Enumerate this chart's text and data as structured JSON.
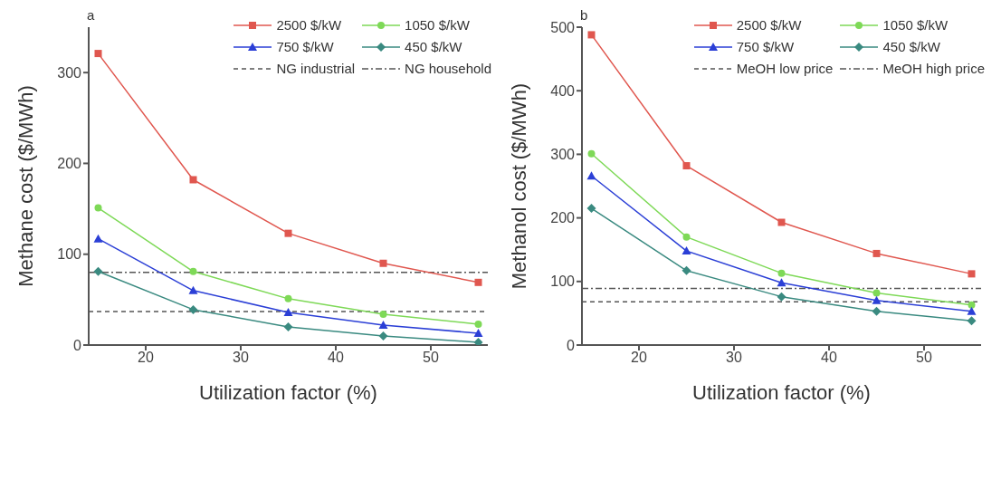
{
  "chart_data": [
    {
      "type": "line",
      "title": "a",
      "xlabel": "Utilization factor (%)",
      "ylabel": "Methane cost ($/MWh)",
      "x": [
        15,
        25,
        35,
        45,
        55
      ],
      "series": [
        {
          "name": "2500 $/kW",
          "color": "#e0574f",
          "marker": "square",
          "values": [
            321,
            182,
            123,
            90,
            69
          ]
        },
        {
          "name": "1050 $/kW",
          "color": "#7ed957",
          "marker": "circle",
          "values": [
            151,
            81,
            51,
            34,
            23
          ]
        },
        {
          "name": "750 $/kW",
          "color": "#2b3fd6",
          "marker": "triangle",
          "values": [
            117,
            60,
            36,
            22,
            13
          ]
        },
        {
          "name": "450 $/kW",
          "color": "#3a8a80",
          "marker": "diamond",
          "values": [
            81,
            39,
            20,
            10,
            3
          ]
        }
      ],
      "ref_lines": [
        {
          "axis": "y",
          "value": 37,
          "label": "NG industrial",
          "color": "#555555",
          "line_style": "dashed"
        },
        {
          "axis": "y",
          "value": 80,
          "label": "NG household",
          "color": "#555555",
          "line_style": "dashdot"
        }
      ],
      "xlim": [
        14,
        56
      ],
      "xticks": [
        20,
        30,
        40,
        50
      ],
      "ylim": [
        0,
        350
      ],
      "yticks": [
        0,
        100,
        200,
        300
      ],
      "grid": false,
      "legend": "top right"
    },
    {
      "type": "line",
      "title": "b",
      "xlabel": "Utilization factor (%)",
      "ylabel": "Methanol cost ($/MWh)",
      "x": [
        15,
        25,
        35,
        45,
        55
      ],
      "series": [
        {
          "name": "2500 $/kW",
          "color": "#e0574f",
          "marker": "square",
          "values": [
            488,
            282,
            193,
            144,
            112
          ]
        },
        {
          "name": "1050 $/kW",
          "color": "#7ed957",
          "marker": "circle",
          "values": [
            301,
            170,
            113,
            82,
            63
          ]
        },
        {
          "name": "750 $/kW",
          "color": "#2b3fd6",
          "marker": "triangle",
          "values": [
            266,
            148,
            98,
            70,
            53
          ]
        },
        {
          "name": "450 $/kW",
          "color": "#3a8a80",
          "marker": "diamond",
          "values": [
            215,
            117,
            76,
            53,
            38
          ]
        }
      ],
      "ref_lines": [
        {
          "axis": "y",
          "value": 68,
          "label": "MeOH low price",
          "color": "#555555",
          "line_style": "dashed"
        },
        {
          "axis": "y",
          "value": 89,
          "label": "MeOH high price",
          "color": "#555555",
          "line_style": "dashdot"
        }
      ],
      "xlim": [
        14,
        56
      ],
      "xticks": [
        20,
        30,
        40,
        50
      ],
      "ylim": [
        0,
        500
      ],
      "yticks": [
        0,
        100,
        200,
        300,
        400,
        500
      ],
      "grid": false,
      "legend": "top right"
    }
  ]
}
